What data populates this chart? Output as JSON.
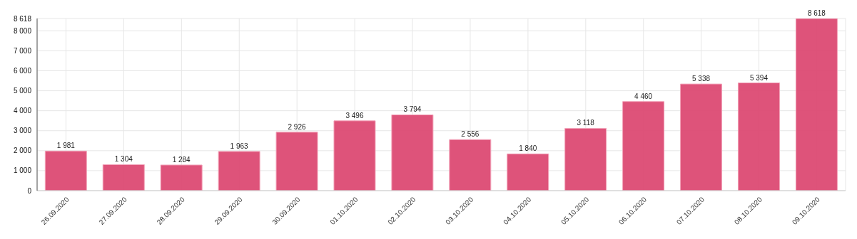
{
  "chart_data": {
    "type": "bar",
    "categories": [
      "26.09.2020",
      "27.09.2020",
      "28.09.2020",
      "29.09.2020",
      "30.09.2020",
      "01.10.2020",
      "02.10.2020",
      "03.10.2020",
      "04.10.2020",
      "05.10.2020",
      "06.10.2020",
      "07.10.2020",
      "08.10.2020",
      "09.10.2020"
    ],
    "values": [
      1981,
      1304,
      1284,
      1963,
      2926,
      3496,
      3794,
      2556,
      1840,
      3118,
      4460,
      5338,
      5394,
      8618
    ],
    "value_labels": [
      "1 981",
      "1 304",
      "1 284",
      "1 963",
      "2 926",
      "3 496",
      "3 794",
      "2 556",
      "1 840",
      "3 118",
      "4 460",
      "5 338",
      "5 394",
      "8 618"
    ],
    "color": "#dc4a73",
    "ylim": [
      0,
      8618
    ],
    "yticks": [
      0,
      {
        "value": 1000,
        "label": "1 000"
      },
      {
        "value": 2000,
        "label": "2 000"
      },
      {
        "value": 3000,
        "label": "3 000"
      },
      {
        "value": 4000,
        "label": "4 000"
      },
      {
        "value": 5000,
        "label": "5 000"
      },
      {
        "value": 6000,
        "label": "6 000"
      },
      {
        "value": 7000,
        "label": "7 000"
      },
      {
        "value": 8000,
        "label": "8 000"
      },
      {
        "value": 8618,
        "label": "8 618"
      }
    ],
    "grid": true
  }
}
